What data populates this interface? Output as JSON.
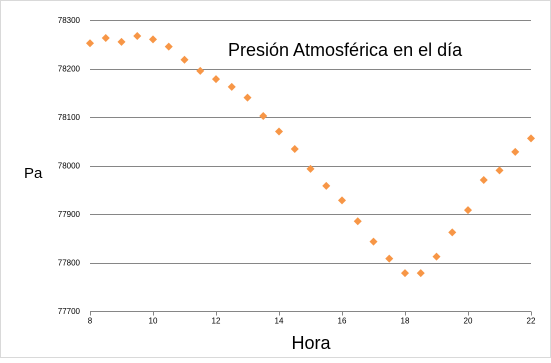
{
  "chart_data": {
    "type": "scatter",
    "title": "Presión Atmosférica en el día",
    "xlabel": "Hora",
    "ylabel": "Pa",
    "xlim": [
      8,
      22
    ],
    "ylim": [
      77700,
      78300
    ],
    "xticks": [
      8,
      10,
      12,
      14,
      16,
      18,
      20,
      22
    ],
    "yticks": [
      77700,
      77800,
      77900,
      78000,
      78100,
      78200,
      78300
    ],
    "grid": true,
    "legend": "none",
    "marker_color": "#f79646",
    "series": [
      {
        "x": [
          8,
          8.5,
          9,
          9.5,
          10,
          10.5,
          11,
          11.5,
          12,
          12.5,
          13,
          13.5,
          14,
          14.5,
          15,
          15.5,
          16,
          16.5,
          17,
          17.5,
          18,
          18.5,
          19,
          19.5,
          20,
          20.5,
          21,
          21.5,
          22
        ],
        "y": [
          78252,
          78263,
          78255,
          78267,
          78260,
          78245,
          78218,
          78195,
          78178,
          78162,
          78140,
          78102,
          78070,
          78034,
          77993,
          77958,
          77928,
          77885,
          77843,
          77808,
          77778,
          77778,
          77812,
          77862,
          77908,
          77970,
          77990,
          78028,
          78056
        ]
      }
    ]
  }
}
